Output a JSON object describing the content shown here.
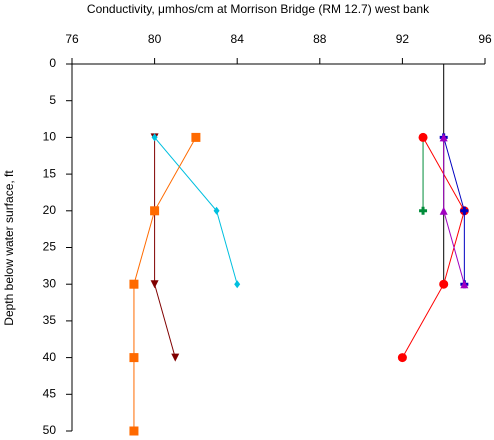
{
  "chart_data": {
    "type": "line",
    "title": "Conductivity, μmhos/cm at Morrison Bridge (RM 12.7) west bank",
    "y_label": "Depth below water surface, ft",
    "xlim": [
      76,
      96
    ],
    "xticks": [
      76,
      80,
      84,
      88,
      92,
      96
    ],
    "ylim": [
      0,
      50
    ],
    "yticks": [
      0,
      5,
      10,
      15,
      20,
      25,
      30,
      35,
      40,
      45,
      50
    ],
    "y_reversed": true,
    "x_axis_position": "top",
    "series": [
      {
        "color": "#000000",
        "marker": "none",
        "x": [
          94,
          94,
          94,
          94
        ],
        "values": [
          0,
          10,
          20,
          30
        ]
      },
      {
        "color": "#800000",
        "marker": "triangle-down",
        "x": [
          80,
          80,
          80,
          81
        ],
        "values": [
          10,
          20,
          30,
          40
        ]
      },
      {
        "color": "#00bfdf",
        "marker": "diamond",
        "x": [
          80,
          83,
          84
        ],
        "values": [
          10,
          20,
          30
        ]
      },
      {
        "color": "#ff6a00",
        "marker": "square",
        "x": [
          82,
          80,
          79,
          79,
          79
        ],
        "values": [
          10,
          20,
          30,
          40,
          50
        ]
      },
      {
        "color": "#008c3a",
        "marker": "plus",
        "x": [
          93,
          93
        ],
        "values": [
          10,
          20
        ]
      },
      {
        "color": "#ff0000",
        "marker": "circle",
        "x": [
          93,
          95,
          94,
          92
        ],
        "values": [
          10,
          20,
          30,
          40
        ]
      },
      {
        "color": "#0000c0",
        "marker": "plus",
        "x": [
          94,
          95,
          95
        ],
        "values": [
          10,
          20,
          30
        ]
      },
      {
        "color": "#a000c0",
        "marker": "triangle-up",
        "x": [
          94,
          94,
          95
        ],
        "values": [
          10,
          20,
          30
        ]
      }
    ]
  }
}
